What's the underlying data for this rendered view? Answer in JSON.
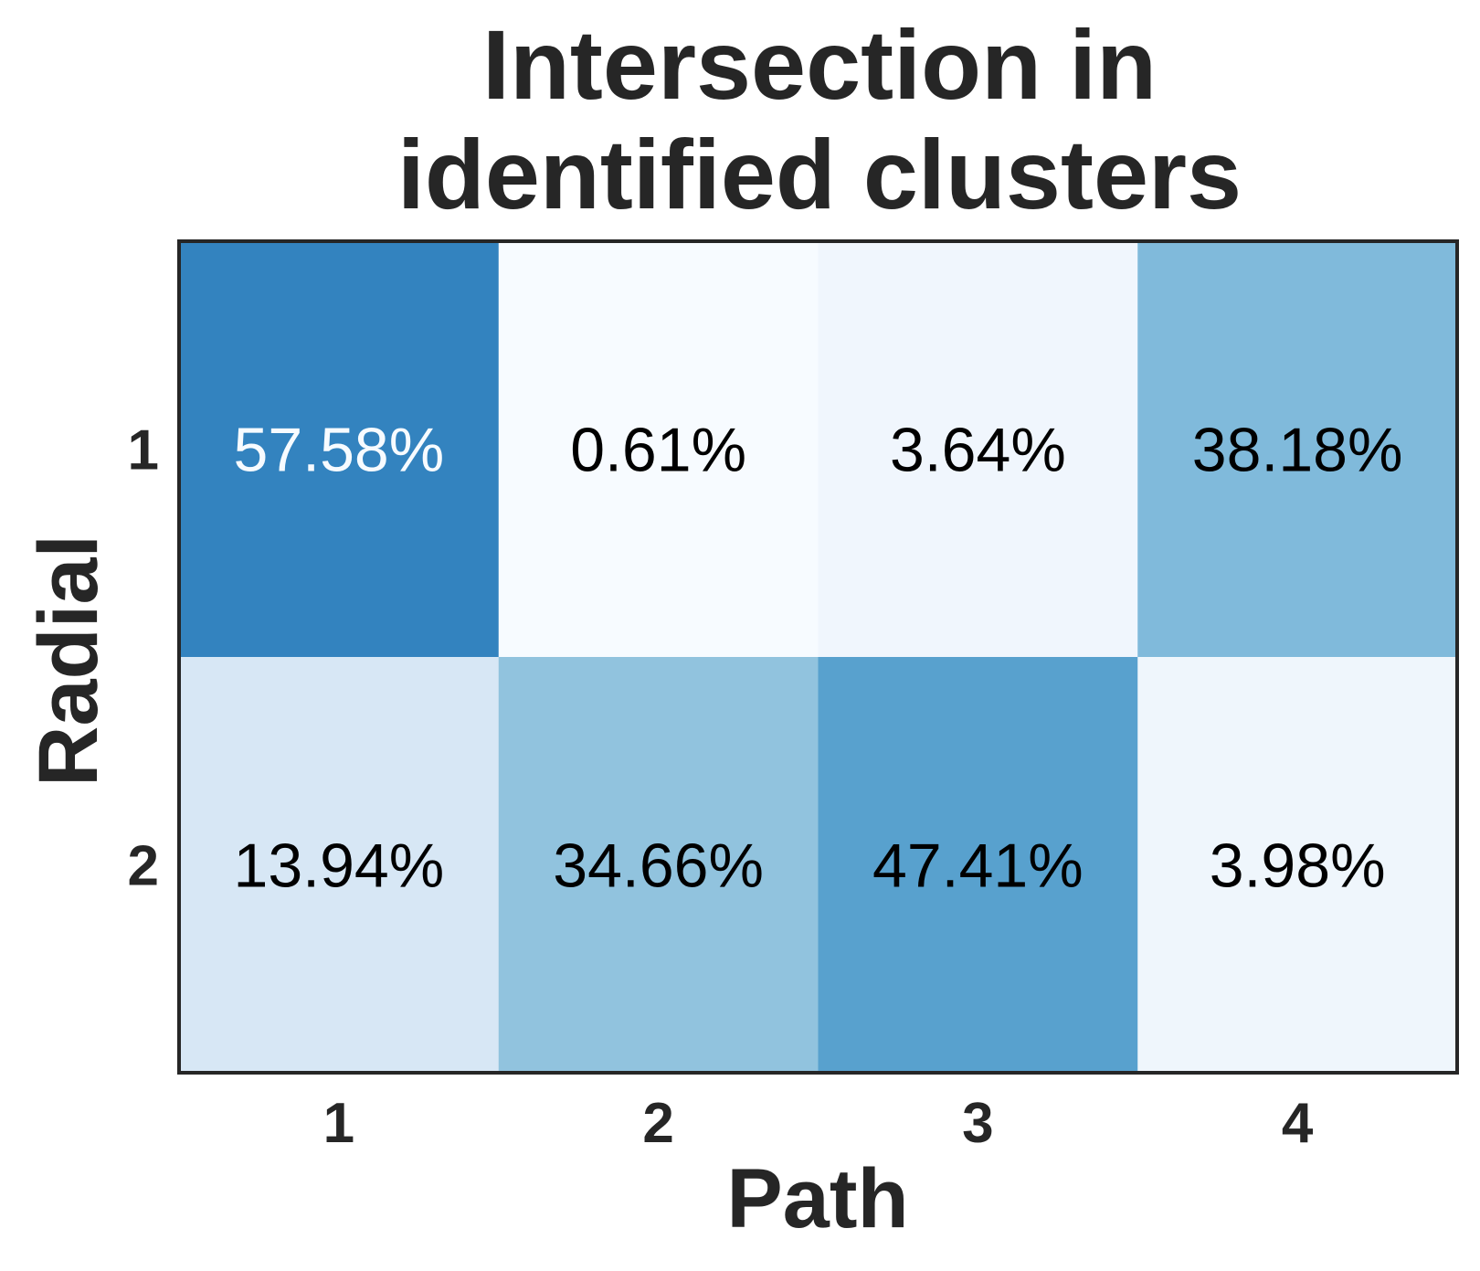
{
  "chart_data": {
    "type": "heatmap",
    "title": [
      "Intersection in",
      "identified clusters"
    ],
    "xlabel": "Path",
    "ylabel": "Radial",
    "x_categories": [
      "1",
      "2",
      "3",
      "4"
    ],
    "y_categories": [
      "1",
      "2"
    ],
    "values": [
      [
        57.58,
        0.61,
        3.64,
        38.18
      ],
      [
        13.94,
        34.66,
        47.41,
        3.98
      ]
    ],
    "labels": [
      [
        "57.58%",
        "0.61%",
        "3.64%",
        "38.18%"
      ],
      [
        "13.94%",
        "34.66%",
        "47.41%",
        "3.98%"
      ]
    ],
    "colormap": "Blues",
    "legend": "none",
    "grid": false,
    "colors": {
      "text_dark": "#000000",
      "text_light": "#f7fbff",
      "frame": "#262626"
    }
  }
}
